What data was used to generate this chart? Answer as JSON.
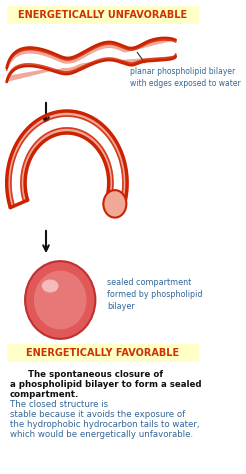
{
  "title_top": "ENERGETICALLY UNFAVORABLE",
  "title_bottom": "ENERGETICALLY FAVORABLE",
  "label_planar": "planar phospholipid bilayer\nwith edges exposed to water",
  "label_sealed": "sealed compartment\nformed by phospholipid\nbilayer",
  "caption_bold": "The spontaneous closure of\na phospholipid bilayer to form a sealed\ncompartment.",
  "caption_normal": "The closed structure is\nstable because it avoids the exposure of\nthe hydrophobic hydrocarbon tails to water,\nwhich would be energetically unfavorable.",
  "bg_color": "#ffffff",
  "title_bg_color": "#ffffc8",
  "title_text_color": "#cc3300",
  "label_text_color": "#336699",
  "caption_bold_color": "#111111",
  "caption_normal_color": "#336699",
  "arrow_color": "#111111",
  "bilayer_pink": "#f0a898",
  "bilayer_red": "#cc2200",
  "bilayer_white": "#ffffff",
  "sphere_outer": "#e05050",
  "sphere_inner": "#e87070",
  "sphere_highlight": "#ffffff"
}
